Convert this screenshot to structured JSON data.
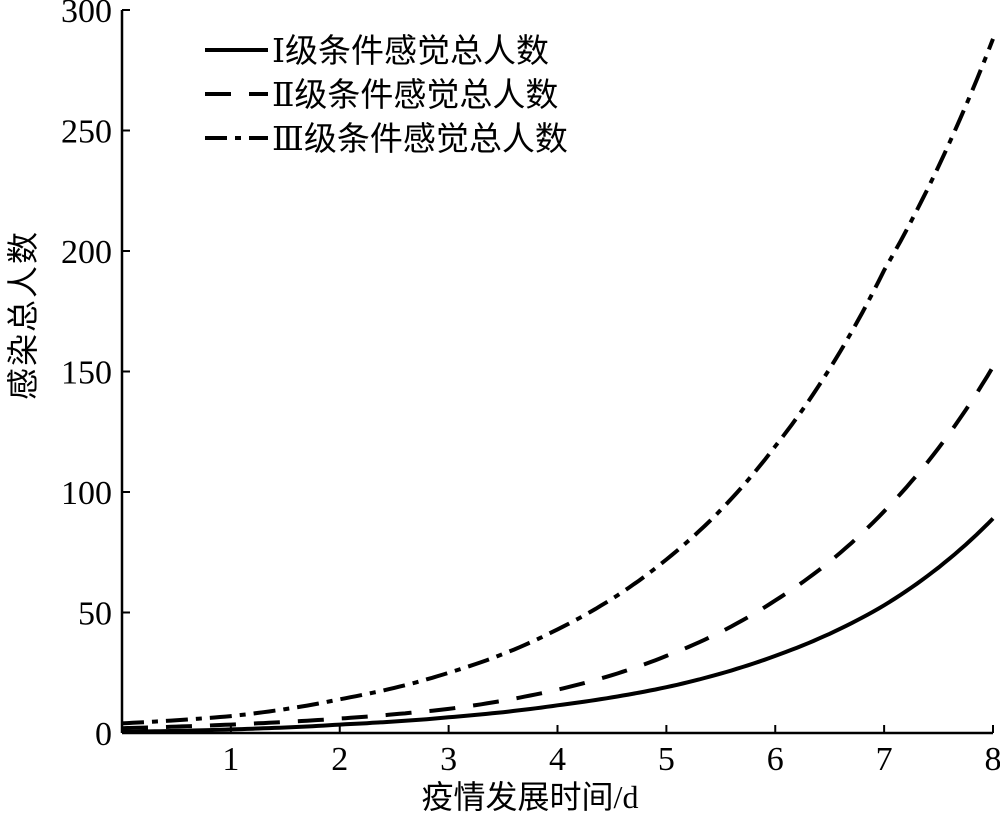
{
  "chart_data": {
    "type": "line",
    "title": "",
    "xlabel": "疫情发展时间/d",
    "ylabel": "感染总人数",
    "xlim": [
      0,
      8
    ],
    "ylim": [
      0,
      300
    ],
    "x_ticks": [
      1,
      2,
      3,
      4,
      5,
      6,
      7,
      8
    ],
    "y_ticks": [
      0,
      50,
      100,
      150,
      200,
      250,
      300
    ],
    "grid": false,
    "legend_position": "top-left",
    "x": [
      0,
      1,
      2,
      3,
      4,
      5,
      6,
      7,
      8
    ],
    "series": [
      {
        "name": "Ⅰ级条件感觉总人数",
        "line_style": "solid",
        "color": "#000000",
        "values": [
          0.5,
          1.5,
          3.5,
          6.5,
          11.5,
          19,
          32,
          53,
          89
        ]
      },
      {
        "name": "Ⅱ级条件感觉总人数",
        "line_style": "dashed",
        "color": "#000000",
        "values": [
          2,
          3.5,
          6,
          10,
          18,
          32,
          55,
          92,
          152
        ]
      },
      {
        "name": "Ⅲ级条件感觉总人数",
        "line_style": "dashdot",
        "color": "#000000",
        "values": [
          4,
          7,
          14,
          25,
          43,
          72,
          119,
          192,
          288
        ]
      }
    ]
  }
}
